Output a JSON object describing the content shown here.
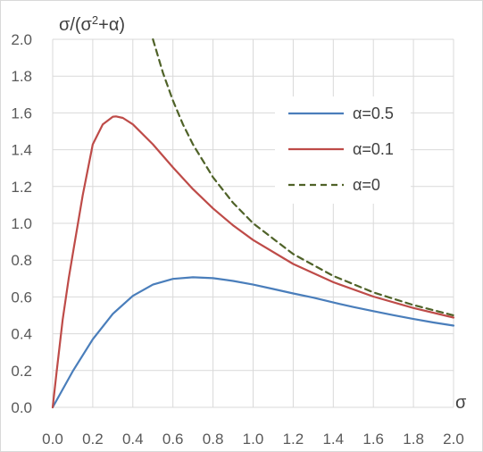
{
  "chart_data": {
    "type": "line",
    "title": "",
    "ylabel_prefix": "σ/(σ",
    "ylabel_superscript": "2",
    "ylabel_suffix": "+α)",
    "xlabel": "σ",
    "xlim": [
      0.0,
      2.0
    ],
    "ylim": [
      0.0,
      2.0
    ],
    "x_ticks": [
      "0.0",
      "0.2",
      "0.4",
      "0.6",
      "0.8",
      "1.0",
      "1.2",
      "1.4",
      "1.6",
      "1.8",
      "2.0"
    ],
    "y_ticks": [
      "0.0",
      "0.2",
      "0.4",
      "0.6",
      "0.8",
      "1.0",
      "1.2",
      "1.4",
      "1.6",
      "1.8",
      "2.0"
    ],
    "grid": true,
    "legend_position": "upper-right",
    "series": [
      {
        "name": "α=0.5",
        "color": "#4a7ebb",
        "dash": "solid",
        "x": [
          0.0,
          0.1,
          0.2,
          0.3,
          0.4,
          0.5,
          0.6,
          0.7,
          0.8,
          0.9,
          1.0,
          1.1,
          1.2,
          1.3,
          1.4,
          1.5,
          1.6,
          1.7,
          1.8,
          1.9,
          2.0
        ],
        "y": [
          0.0,
          0.196,
          0.37,
          0.508,
          0.606,
          0.667,
          0.698,
          0.707,
          0.702,
          0.687,
          0.667,
          0.643,
          0.619,
          0.596,
          0.57,
          0.545,
          0.523,
          0.501,
          0.48,
          0.461,
          0.444
        ]
      },
      {
        "name": "α=0.1",
        "color": "#be4b48",
        "dash": "solid",
        "x": [
          0.0,
          0.02,
          0.05,
          0.08,
          0.1,
          0.15,
          0.2,
          0.25,
          0.3,
          0.316,
          0.35,
          0.4,
          0.5,
          0.6,
          0.7,
          0.8,
          0.9,
          1.0,
          1.2,
          1.4,
          1.6,
          1.8,
          2.0
        ],
        "y": [
          0.0,
          0.196,
          0.476,
          0.702,
          0.833,
          1.154,
          1.429,
          1.538,
          1.579,
          1.581,
          1.573,
          1.538,
          1.429,
          1.304,
          1.186,
          1.081,
          0.989,
          0.909,
          0.779,
          0.68,
          0.602,
          0.54,
          0.488
        ]
      },
      {
        "name": "α=0",
        "color": "#4f6228",
        "dash": "dashed",
        "x": [
          0.5,
          0.55,
          0.6,
          0.65,
          0.7,
          0.8,
          0.9,
          1.0,
          1.2,
          1.4,
          1.6,
          1.8,
          2.0
        ],
        "y": [
          2.0,
          1.818,
          1.667,
          1.538,
          1.429,
          1.25,
          1.111,
          1.0,
          0.833,
          0.714,
          0.625,
          0.556,
          0.5
        ]
      }
    ]
  }
}
